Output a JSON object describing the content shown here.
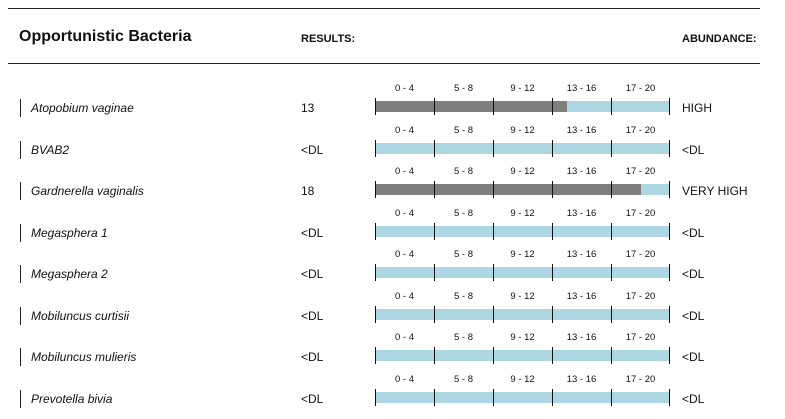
{
  "report": {
    "title": "Opportunistic Bacteria",
    "results_header": "RESULTS:",
    "abundance_header": "ABUNDANCE:"
  },
  "scale": {
    "max": 20,
    "labels": [
      "0 - 4",
      "5 - 8",
      "9 - 12",
      "13 - 16",
      "17 - 20"
    ]
  },
  "colors": {
    "bar_track": "#add8e3",
    "bar_fill": "#7f7f7f"
  },
  "rows": [
    {
      "name": "Atopobium vaginae",
      "result": "13",
      "level": 13,
      "abundance": "HIGH"
    },
    {
      "name": "BVAB2",
      "result": "<DL",
      "level": 0,
      "abundance": "<DL"
    },
    {
      "name": "Gardnerella vaginalis",
      "result": "18",
      "level": 18,
      "abundance": "VERY HIGH"
    },
    {
      "name": "Megasphera 1",
      "result": "<DL",
      "level": 0,
      "abundance": "<DL"
    },
    {
      "name": "Megasphera 2",
      "result": "<DL",
      "level": 0,
      "abundance": "<DL"
    },
    {
      "name": "Mobiluncus curtisii",
      "result": "<DL",
      "level": 0,
      "abundance": "<DL"
    },
    {
      "name": "Mobiluncus mulieris",
      "result": "<DL",
      "level": 0,
      "abundance": "<DL"
    },
    {
      "name": "Prevotella bivia",
      "result": "<DL",
      "level": 0,
      "abundance": "<DL"
    }
  ]
}
